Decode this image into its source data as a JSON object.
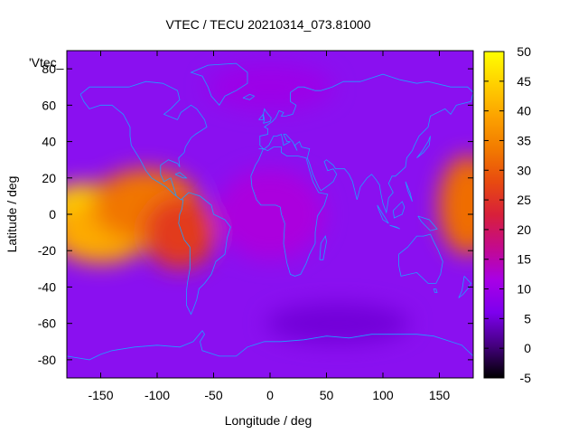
{
  "chart_data": {
    "type": "heatmap",
    "title": "VTEC / TECU 20210314_073.81000",
    "xlabel": "Longitude / deg",
    "ylabel": "Latitude / deg",
    "xlim": [
      -180,
      180
    ],
    "ylim": [
      -90,
      90
    ],
    "x_ticks": [
      -150,
      -100,
      -50,
      0,
      50,
      100,
      150
    ],
    "y_ticks": [
      -80,
      -60,
      -40,
      -20,
      0,
      20,
      40,
      60,
      80
    ],
    "colorbar": {
      "min": -5,
      "max": 50,
      "ticks": [
        -5,
        0,
        5,
        10,
        15,
        20,
        25,
        30,
        35,
        40,
        45,
        50
      ],
      "palette": [
        "#000000",
        "#5b00a8",
        "#8e00ff",
        "#b000d8",
        "#d8203a",
        "#f26a00",
        "#ffc000",
        "#ffff00"
      ]
    },
    "legend_label": "'Vtec_",
    "overlay": "coastlines",
    "features": [
      {
        "lon": -165,
        "lat": 5,
        "tecu": 45
      },
      {
        "lon": -150,
        "lat": -10,
        "tecu": 40
      },
      {
        "lon": -110,
        "lat": 5,
        "tecu": 33
      },
      {
        "lon": -80,
        "lat": -10,
        "tecu": 26
      },
      {
        "lon": 175,
        "lat": 5,
        "tecu": 32
      },
      {
        "lon": 0,
        "lat": 0,
        "tecu": 12
      },
      {
        "lon": 60,
        "lat": -60,
        "tecu": 5
      },
      {
        "lon": 0,
        "lat": 70,
        "tecu": 10
      }
    ]
  }
}
